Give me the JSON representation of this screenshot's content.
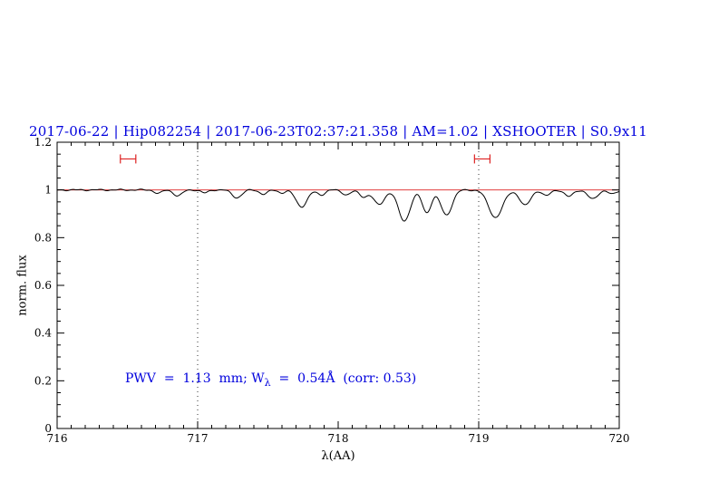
{
  "page": {
    "background": "#ffffff"
  },
  "chart_data": {
    "type": "line",
    "title": "2017-06-22 | Hip082254 | 2017-06-23T02:37:21.358 | AM=1.02 | XSHOOTER | S0.9x11",
    "title_color": "#0000dd",
    "xlabel": "λ(AA)",
    "ylabel": "norm. flux",
    "xlim": [
      716,
      720
    ],
    "ylim": [
      0,
      1.2
    ],
    "xticks": [
      716,
      717,
      718,
      719,
      720
    ],
    "yticks": [
      0,
      0.2,
      0.4,
      0.6,
      0.8,
      1,
      1.2
    ],
    "x_minor_step": 0.1,
    "y_minor_step": 0.05,
    "grid": false,
    "dotted_vlines": [
      717,
      719
    ],
    "continuum": {
      "y": 1.0,
      "color": "#dd2222"
    },
    "band_markers": [
      {
        "x_from": 716.45,
        "x_to": 716.56,
        "y": 1.13
      },
      {
        "x_from": 718.97,
        "x_to": 719.08,
        "y": 1.13
      }
    ],
    "marker_color": "#dd2222",
    "line_color": "#000000",
    "sampling_step": 0.008,
    "absorption_lines": [
      {
        "center": 716.72,
        "depth": 0.015,
        "sigma": 0.025
      },
      {
        "center": 716.86,
        "depth": 0.025,
        "sigma": 0.03
      },
      {
        "center": 717.05,
        "depth": 0.013,
        "sigma": 0.025
      },
      {
        "center": 717.28,
        "depth": 0.032,
        "sigma": 0.035
      },
      {
        "center": 717.47,
        "depth": 0.018,
        "sigma": 0.028
      },
      {
        "center": 717.6,
        "depth": 0.012,
        "sigma": 0.025
      },
      {
        "center": 717.74,
        "depth": 0.07,
        "sigma": 0.04
      },
      {
        "center": 717.88,
        "depth": 0.02,
        "sigma": 0.028
      },
      {
        "center": 718.06,
        "depth": 0.02,
        "sigma": 0.03
      },
      {
        "center": 718.18,
        "depth": 0.028,
        "sigma": 0.03
      },
      {
        "center": 718.29,
        "depth": 0.062,
        "sigma": 0.038
      },
      {
        "center": 718.47,
        "depth": 0.13,
        "sigma": 0.042
      },
      {
        "center": 718.63,
        "depth": 0.095,
        "sigma": 0.032
      },
      {
        "center": 718.77,
        "depth": 0.105,
        "sigma": 0.04
      },
      {
        "center": 719.12,
        "depth": 0.115,
        "sigma": 0.05
      },
      {
        "center": 719.33,
        "depth": 0.065,
        "sigma": 0.038
      },
      {
        "center": 719.48,
        "depth": 0.025,
        "sigma": 0.028
      },
      {
        "center": 719.64,
        "depth": 0.028,
        "sigma": 0.03
      },
      {
        "center": 719.81,
        "depth": 0.038,
        "sigma": 0.035
      },
      {
        "center": 719.95,
        "depth": 0.018,
        "sigma": 0.028
      }
    ],
    "annotation": {
      "prefix": "PWV  =  1.13  mm; W",
      "sub": "λ",
      "suffix": "  =  0.54Å  (corr: 0.53)",
      "color": "#0000dd"
    }
  }
}
